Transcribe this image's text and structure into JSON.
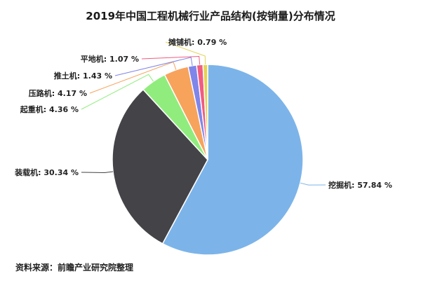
{
  "chart_data": {
    "type": "pie",
    "title": "2019年中国工程机械行业产品结构(按销量)分布情况",
    "slices": [
      {
        "name": "挖掘机",
        "label": "挖掘机: 57.84 %",
        "value": 57.84,
        "color": "#7cb4ea"
      },
      {
        "name": "装载机",
        "label": "装载机: 30.34 %",
        "value": 30.34,
        "color": "#434348"
      },
      {
        "name": "起重机",
        "label": "起重机: 4.36 %",
        "value": 4.36,
        "color": "#90ed7d"
      },
      {
        "name": "压路机",
        "label": "压路机: 4.17 %",
        "value": 4.17,
        "color": "#f7a35c"
      },
      {
        "name": "推土机",
        "label": "推土机: 1.43 %",
        "value": 1.43,
        "color": "#8085e9"
      },
      {
        "name": "平地机",
        "label": "平地机: 1.07 %",
        "value": 1.07,
        "color": "#f15c80"
      },
      {
        "name": "摊铺机",
        "label": "摊铺机: 0.79 %",
        "value": 0.79,
        "color": "#e4d354"
      }
    ],
    "start": "12 o'clock",
    "direction": "clockwise",
    "source": "资料来源：前瞻产业研究院整理"
  }
}
